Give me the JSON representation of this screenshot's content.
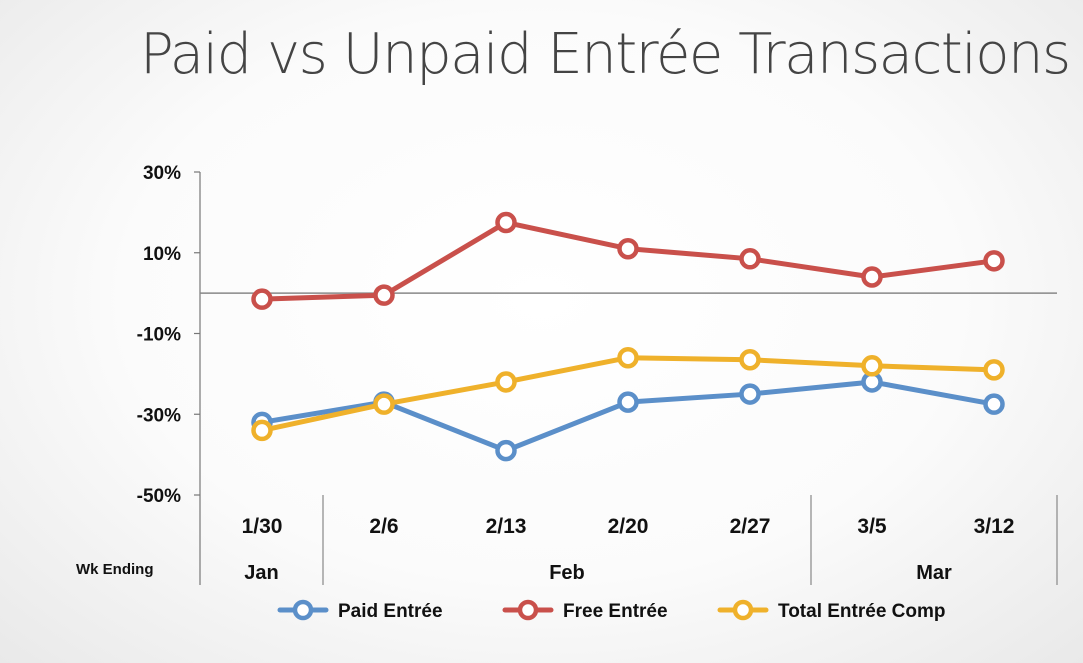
{
  "chart_data": {
    "type": "line",
    "title": "Paid vs Unpaid Entrée Transactions",
    "xlabel": "Wk Ending",
    "categories": [
      "1/30",
      "2/6",
      "2/13",
      "2/20",
      "2/27",
      "3/5",
      "3/12"
    ],
    "month_groups": [
      {
        "label": "Jan",
        "categories": [
          "1/30"
        ]
      },
      {
        "label": "Feb",
        "categories": [
          "2/6",
          "2/13",
          "2/20",
          "2/27"
        ]
      },
      {
        "label": "Mar",
        "categories": [
          "3/5",
          "3/12"
        ]
      }
    ],
    "y_ticks": [
      "30%",
      "10%",
      "-10%",
      "-30%",
      "-50%"
    ],
    "y_tick_values": [
      30,
      10,
      -10,
      -30,
      -50
    ],
    "ylim": [
      -50,
      30
    ],
    "zero_line": true,
    "grid": false,
    "legend_position": "bottom",
    "series": [
      {
        "name": "Paid Entrée",
        "color": "#5b8fc9",
        "values": [
          -32,
          -27,
          -39,
          -27,
          -25,
          -22,
          -27.5
        ]
      },
      {
        "name": "Free Entrée",
        "color": "#c9504b",
        "values": [
          -1.5,
          -0.5,
          17.5,
          11,
          8.5,
          4,
          8
        ]
      },
      {
        "name": "Total Entrée Comp",
        "color": "#efb12b",
        "values": [
          -34,
          -27.5,
          -22,
          -16,
          -16.5,
          -18,
          -19
        ]
      }
    ]
  }
}
